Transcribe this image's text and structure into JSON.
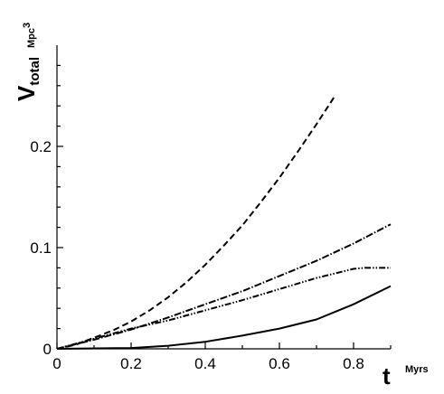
{
  "chart_data": {
    "type": "line",
    "xlabel": "t",
    "xunit": "Myrs",
    "ylabel_main": "V",
    "ylabel_sub": "total",
    "yunit": "Mpc",
    "yunit_exp": "3",
    "xlim": [
      0,
      0.9
    ],
    "ylim": [
      0,
      0.3
    ],
    "grid": false,
    "xticks": [
      0,
      0.2,
      0.4,
      0.6,
      0.8
    ],
    "xtick_labels": [
      "0",
      "0.2",
      "0.4",
      "0.6",
      "0.8"
    ],
    "yticks": [
      0,
      0.1,
      0.2
    ],
    "ytick_labels": [
      "0",
      "0.1",
      "0.2"
    ],
    "series": [
      {
        "style": "dashed",
        "x": [
          0,
          0.05,
          0.1,
          0.15,
          0.2,
          0.25,
          0.3,
          0.35,
          0.4,
          0.45,
          0.5,
          0.55,
          0.6,
          0.65,
          0.7,
          0.75
        ],
        "y": [
          0,
          0.004,
          0.011,
          0.018,
          0.027,
          0.038,
          0.051,
          0.066,
          0.083,
          0.102,
          0.122,
          0.145,
          0.169,
          0.195,
          0.222,
          0.25
        ]
      },
      {
        "style": "dash-dot",
        "x": [
          0,
          0.1,
          0.2,
          0.3,
          0.4,
          0.5,
          0.6,
          0.7,
          0.8,
          0.9
        ],
        "y": [
          0,
          0.009,
          0.019,
          0.031,
          0.044,
          0.057,
          0.072,
          0.087,
          0.104,
          0.123
        ]
      },
      {
        "style": "dash-dot-dot",
        "x": [
          0,
          0.1,
          0.2,
          0.3,
          0.4,
          0.5,
          0.6,
          0.7,
          0.8,
          0.83,
          0.9
        ],
        "y": [
          0,
          0.01,
          0.02,
          0.028,
          0.038,
          0.048,
          0.059,
          0.07,
          0.079,
          0.08,
          0.08
        ]
      },
      {
        "style": "solid",
        "x": [
          0,
          0.2,
          0.3,
          0.4,
          0.5,
          0.6,
          0.7,
          0.8,
          0.9
        ],
        "y": [
          0,
          0.0008,
          0.003,
          0.007,
          0.013,
          0.02,
          0.029,
          0.044,
          0.062
        ]
      }
    ],
    "colors": {
      "line": "#000000",
      "background": "#ffffff"
    }
  }
}
